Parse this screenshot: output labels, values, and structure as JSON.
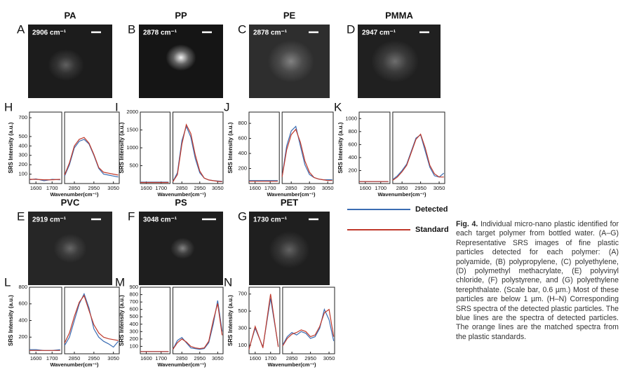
{
  "images": [
    {
      "letter": "A",
      "title": "PA",
      "wavenumber": "2906 cm⁻¹"
    },
    {
      "letter": "B",
      "title": "PP",
      "wavenumber": "2878 cm⁻¹"
    },
    {
      "letter": "C",
      "title": "PE",
      "wavenumber": "2878 cm⁻¹"
    },
    {
      "letter": "D",
      "title": "PMMA",
      "wavenumber": "2947 cm⁻¹"
    },
    {
      "letter": "E",
      "title": "PVC",
      "wavenumber": "2919 cm⁻¹"
    },
    {
      "letter": "F",
      "title": "PS",
      "wavenumber": "3048 cm⁻¹"
    },
    {
      "letter": "G",
      "title": "PET",
      "wavenumber": "1730 cm⁻¹"
    }
  ],
  "caption": {
    "label": "Fig. 4.",
    "text": "Individual micro-nano plastic identified for each target polymer from bottled water. (A–G) Representative SRS images of fine plastic particles detected for each polymer: (A) polyamide, (B) polypropylene, (C) polyethylene, (D) polymethyl methacrylate, (E) polyvinyl chloride, (F) polystyrene, and (G) polyethylene terephthalate. (Scale bar, 0.6 µm.) Most of these particles are below 1 µm. (H–N) Corresponding SRS spectra of the detected plastic particles. The blue lines are the spectra of detected particles. The orange lines are the matched spectra from the plastic standards."
  },
  "chart_data": [
    {
      "type": "line",
      "letter": "H",
      "x_label": "Wavenumber(cm⁻¹)",
      "y_label": "SRS Intensity (a.u.)",
      "x": [
        1560,
        1600,
        1650,
        1700,
        1750,
        2800,
        2825,
        2850,
        2875,
        2900,
        2925,
        2950,
        2975,
        3000,
        3025,
        3050,
        3075
      ],
      "xlim": [
        [
          1560,
          1760
        ],
        [
          2800,
          3080
        ]
      ],
      "xticks": [
        1600,
        1700,
        2850,
        2950,
        3050
      ],
      "ylim": [
        0,
        760
      ],
      "yticks": [
        100,
        200,
        300,
        400,
        500,
        700
      ],
      "series": [
        {
          "name": "Detected",
          "color": "#3b6db3",
          "values": [
            40,
            50,
            30,
            45,
            40,
            80,
            200,
            380,
            450,
            470,
            420,
            300,
            160,
            100,
            90,
            80,
            70
          ]
        },
        {
          "name": "Standard",
          "color": "#c0392b",
          "values": [
            45,
            45,
            40,
            40,
            45,
            90,
            220,
            400,
            470,
            490,
            430,
            310,
            170,
            120,
            110,
            100,
            90
          ]
        }
      ]
    },
    {
      "type": "line",
      "letter": "I",
      "x_label": "Wavenumber(cm⁻¹)",
      "y_label": "SRS Intensity (a.u.)",
      "x": [
        1560,
        1600,
        1650,
        1700,
        1750,
        2800,
        2825,
        2850,
        2875,
        2900,
        2925,
        2950,
        2975,
        3000,
        3025,
        3050,
        3075
      ],
      "xlim": [
        [
          1560,
          1760
        ],
        [
          2800,
          3080
        ]
      ],
      "xticks": [
        1600,
        1700,
        2850,
        2950,
        3050
      ],
      "ylim": [
        0,
        2000
      ],
      "yticks": [
        500,
        1000,
        1500,
        2000
      ],
      "series": [
        {
          "name": "Detected",
          "color": "#3b6db3",
          "values": [
            40,
            40,
            40,
            40,
            40,
            60,
            300,
            1200,
            1600,
            1300,
            700,
            300,
            150,
            100,
            80,
            70,
            60
          ]
        },
        {
          "name": "Standard",
          "color": "#c0392b",
          "values": [
            30,
            30,
            30,
            30,
            30,
            50,
            250,
            1100,
            1650,
            1400,
            800,
            350,
            150,
            100,
            80,
            60,
            50
          ]
        }
      ]
    },
    {
      "type": "line",
      "letter": "J",
      "x_label": "Wavenumber(cm⁻¹)",
      "y_label": "SRS Intensity (a.u.)",
      "x": [
        1560,
        1600,
        1650,
        1700,
        1750,
        2800,
        2825,
        2850,
        2875,
        2900,
        2925,
        2950,
        2975,
        3000,
        3025,
        3050,
        3075
      ],
      "xlim": [
        [
          1560,
          1760
        ],
        [
          2800,
          3080
        ]
      ],
      "xticks": [
        1600,
        1700,
        2850,
        2950,
        3050
      ],
      "ylim": [
        0,
        950
      ],
      "yticks": [
        200,
        400,
        600,
        800
      ],
      "series": [
        {
          "name": "Detected",
          "color": "#3b6db3",
          "values": [
            40,
            40,
            40,
            40,
            40,
            100,
            500,
            700,
            760,
            500,
            250,
            120,
            80,
            60,
            50,
            50,
            50
          ]
        },
        {
          "name": "Standard",
          "color": "#c0392b",
          "values": [
            30,
            30,
            30,
            30,
            30,
            90,
            450,
            650,
            720,
            550,
            300,
            150,
            80,
            60,
            50,
            40,
            40
          ]
        }
      ]
    },
    {
      "type": "line",
      "letter": "K",
      "x_label": "Wavenumber(cm⁻¹)",
      "y_label": "SRS Intensity (a.u.)",
      "x": [
        1560,
        1600,
        1650,
        1700,
        1750,
        2800,
        2825,
        2850,
        2875,
        2900,
        2925,
        2950,
        2975,
        3000,
        3025,
        3050,
        3075
      ],
      "xlim": [
        [
          1560,
          1760
        ],
        [
          2800,
          3080
        ]
      ],
      "xticks": [
        1600,
        1700,
        2850,
        2950,
        3050
      ],
      "ylim": [
        0,
        1100
      ],
      "yticks": [
        200,
        400,
        600,
        800,
        1000
      ],
      "series": [
        {
          "name": "Detected",
          "color": "#3b6db3",
          "values": [
            30,
            30,
            30,
            30,
            30,
            60,
            120,
            200,
            300,
            500,
            700,
            750,
            500,
            250,
            120,
            100,
            160
          ]
        },
        {
          "name": "Standard",
          "color": "#c0392b",
          "values": [
            30,
            30,
            30,
            30,
            30,
            50,
            100,
            180,
            280,
            480,
            680,
            760,
            550,
            280,
            150,
            100,
            100
          ]
        }
      ]
    },
    {
      "type": "line",
      "letter": "L",
      "x_label": "Wavenumber(cm⁻¹)",
      "y_label": "SRS Intensity (a.u.)",
      "x": [
        1560,
        1600,
        1650,
        1700,
        1750,
        2800,
        2825,
        2850,
        2875,
        2900,
        2925,
        2950,
        2975,
        3000,
        3025,
        3050,
        3075
      ],
      "xlim": [
        [
          1560,
          1760
        ],
        [
          2800,
          3080
        ]
      ],
      "xticks": [
        1600,
        1700,
        2850,
        2950,
        3050
      ],
      "ylim": [
        0,
        800
      ],
      "yticks": [
        200,
        400,
        600,
        800
      ],
      "series": [
        {
          "name": "Detected",
          "color": "#3b6db3",
          "values": [
            50,
            50,
            40,
            40,
            50,
            100,
            200,
            400,
            600,
            720,
            550,
            300,
            200,
            150,
            120,
            80,
            150
          ]
        },
        {
          "name": "Standard",
          "color": "#c0392b",
          "values": [
            40,
            40,
            40,
            40,
            40,
            130,
            250,
            450,
            620,
            700,
            520,
            350,
            250,
            200,
            180,
            170,
            160
          ]
        }
      ]
    },
    {
      "type": "line",
      "letter": "M",
      "x_label": "Wavenumber(cm⁻¹)",
      "y_label": "SRS Intensity (a.u.)",
      "x": [
        1560,
        1600,
        1650,
        1700,
        1750,
        2800,
        2825,
        2850,
        2875,
        2900,
        2925,
        2950,
        2975,
        3000,
        3025,
        3050,
        3075
      ],
      "xlim": [
        [
          1560,
          1760
        ],
        [
          2800,
          3080
        ]
      ],
      "xticks": [
        1600,
        1700,
        2850,
        2950,
        3050
      ],
      "ylim": [
        0,
        900
      ],
      "yticks": [
        100,
        200,
        300,
        400,
        500,
        600,
        700,
        800,
        900
      ],
      "series": [
        {
          "name": "Detected",
          "color": "#3b6db3",
          "values": [
            30,
            30,
            30,
            30,
            30,
            60,
            180,
            220,
            150,
            80,
            70,
            60,
            70,
            150,
            400,
            720,
            300
          ]
        },
        {
          "name": "Standard",
          "color": "#c0392b",
          "values": [
            30,
            30,
            30,
            30,
            30,
            60,
            150,
            200,
            160,
            100,
            80,
            70,
            80,
            170,
            450,
            680,
            250
          ]
        }
      ]
    },
    {
      "type": "line",
      "letter": "N",
      "x_label": "Wavenumber(cm⁻¹)",
      "y_label": "SRS Intensity (a.u.)",
      "x": [
        1560,
        1600,
        1650,
        1700,
        1750,
        2800,
        2825,
        2850,
        2875,
        2900,
        2925,
        2950,
        2975,
        3000,
        3025,
        3050,
        3075
      ],
      "xlim": [
        [
          1560,
          1760
        ],
        [
          2800,
          3080
        ]
      ],
      "xticks": [
        1600,
        1700,
        2850,
        2950,
        3050
      ],
      "ylim": [
        0,
        780
      ],
      "yticks": [
        100,
        300,
        500,
        700
      ],
      "series": [
        {
          "name": "Detected",
          "color": "#3b6db3",
          "values": [
            60,
            300,
            80,
            650,
            90,
            100,
            200,
            250,
            220,
            260,
            240,
            180,
            200,
            300,
            520,
            400,
            150
          ]
        },
        {
          "name": "Standard",
          "color": "#c0392b",
          "values": [
            50,
            320,
            70,
            700,
            80,
            90,
            180,
            230,
            250,
            280,
            260,
            200,
            220,
            320,
            480,
            520,
            200
          ]
        }
      ]
    }
  ]
}
